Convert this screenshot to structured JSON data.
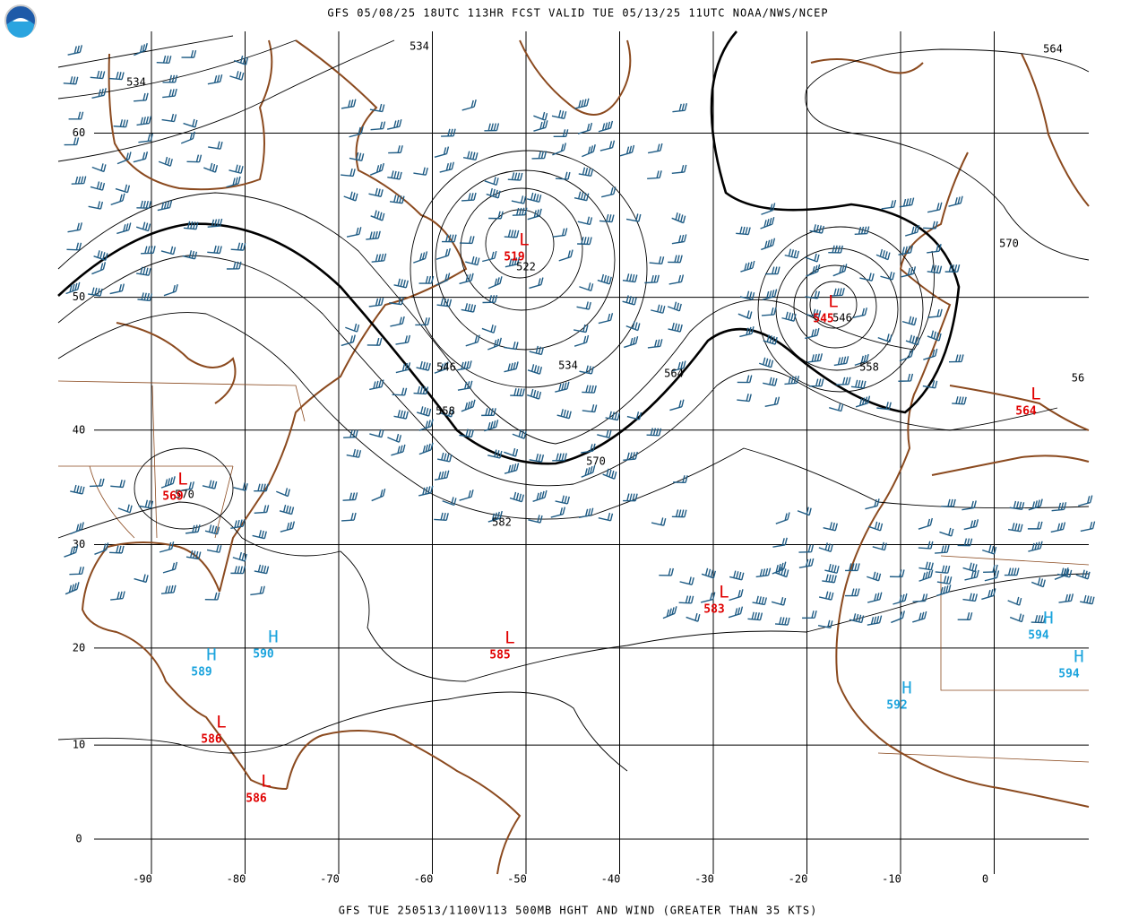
{
  "header": {
    "title": "GFS 05/08/25 18UTC 113HR FCST VALID TUE 05/13/25 11UTC NOAA/NWS/NCEP"
  },
  "footer": {
    "caption": "GFS TUE 250513/1100V113 500MB HGHT AND WIND (GREATER THAN 35 KTS)"
  },
  "map": {
    "latitudes": [
      60,
      50,
      40,
      30,
      20,
      10,
      0
    ],
    "longitudes": [
      -90,
      -80,
      -70,
      -60,
      -50,
      -40,
      -30,
      -20,
      -10,
      0
    ],
    "contour_labels": [
      "534",
      "534",
      "564",
      "522",
      "570",
      "546",
      "546",
      "534",
      "564",
      "558",
      "558",
      "570",
      "582",
      "56",
      "570"
    ],
    "centers": [
      {
        "letter": "L",
        "value": "519"
      },
      {
        "letter": "L",
        "value": "545"
      },
      {
        "letter": "L",
        "value": "564"
      },
      {
        "letter": "L",
        "value": "569"
      },
      {
        "letter": "L",
        "value": "583"
      },
      {
        "letter": "L",
        "value": "585"
      },
      {
        "letter": "L",
        "value": "586"
      },
      {
        "letter": "L",
        "value": "586"
      },
      {
        "letter": "H",
        "value": "589"
      },
      {
        "letter": "H",
        "value": "590"
      },
      {
        "letter": "H",
        "value": "594"
      },
      {
        "letter": "H",
        "value": "594"
      },
      {
        "letter": "H",
        "value": "592"
      }
    ]
  }
}
